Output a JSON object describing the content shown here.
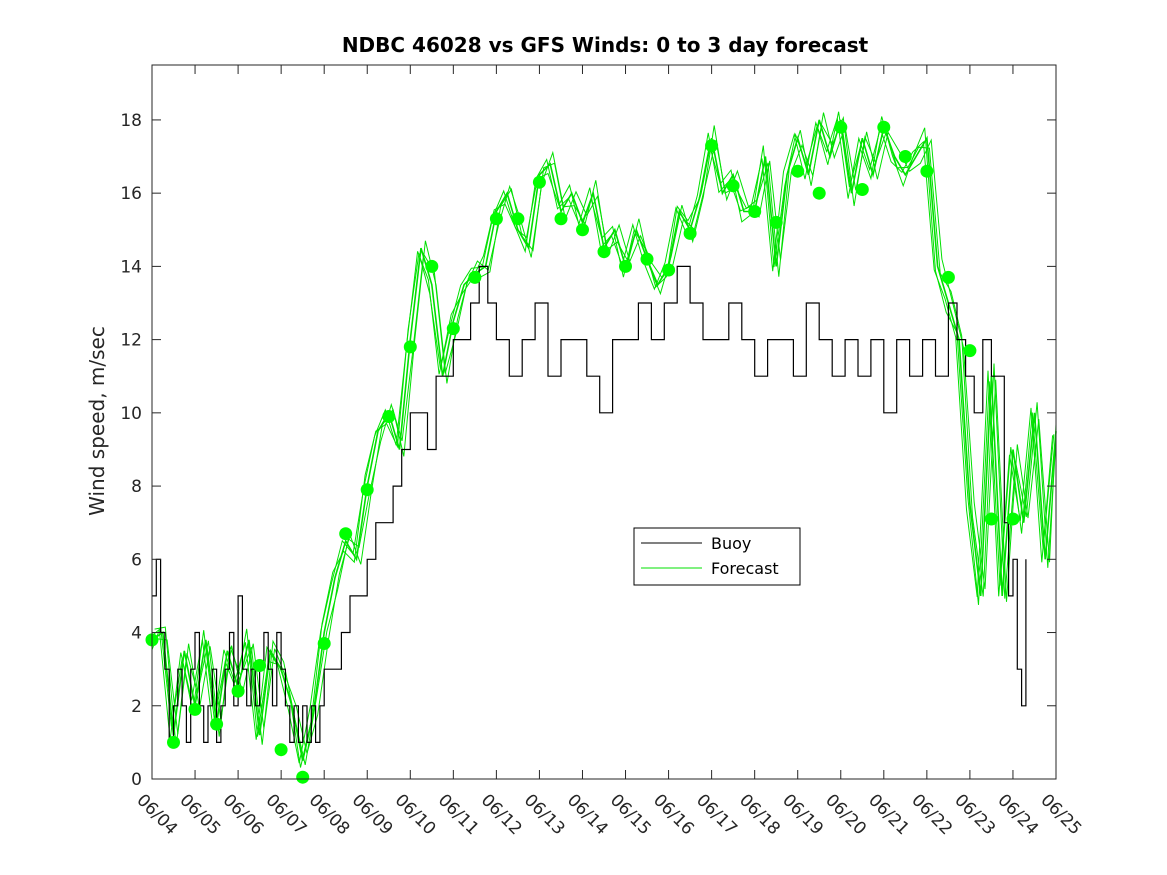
{
  "chart_data": {
    "type": "line",
    "title": "NDBC 46028 vs GFS Winds: 0 to 3 day forecast",
    "xlabel": "",
    "ylabel": "Wind speed, m/sec",
    "xlim": [
      "06/04",
      "06/25"
    ],
    "ylim": [
      0,
      19.5
    ],
    "x_tick_labels": [
      "06/04",
      "06/05",
      "06/06",
      "06/07",
      "06/08",
      "06/09",
      "06/10",
      "06/11",
      "06/12",
      "06/13",
      "06/14",
      "06/15",
      "06/16",
      "06/17",
      "06/18",
      "06/19",
      "06/20",
      "06/21",
      "06/22",
      "06/23",
      "06/24",
      "06/25"
    ],
    "y_ticks": [
      0,
      2,
      4,
      6,
      8,
      10,
      12,
      14,
      16,
      18
    ],
    "grid": false,
    "legend_position": "center-right",
    "series": [
      {
        "name": "Buoy",
        "color": "#000000",
        "x_days": [
          0,
          0.1,
          0.2,
          0.3,
          0.4,
          0.5,
          0.6,
          0.7,
          0.8,
          0.9,
          1.0,
          1.1,
          1.2,
          1.3,
          1.4,
          1.5,
          1.6,
          1.7,
          1.8,
          1.9,
          2.0,
          2.1,
          2.2,
          2.3,
          2.4,
          2.5,
          2.6,
          2.7,
          2.8,
          2.9,
          3.0,
          3.1,
          3.2,
          3.3,
          3.4,
          3.5,
          3.6,
          3.7,
          3.8,
          3.9,
          4.0,
          4.2,
          4.4,
          4.6,
          4.8,
          5.0,
          5.2,
          5.4,
          5.6,
          5.8,
          6.0,
          6.2,
          6.4,
          6.6,
          6.8,
          7.0,
          7.2,
          7.4,
          7.6,
          7.8,
          8.0,
          8.3,
          8.6,
          8.9,
          9.2,
          9.5,
          9.8,
          10.1,
          10.4,
          10.7,
          11.0,
          11.3,
          11.6,
          11.9,
          12.2,
          12.5,
          12.8,
          13.1,
          13.4,
          13.7,
          14.0,
          14.3,
          14.6,
          14.9,
          15.2,
          15.5,
          15.8,
          16.1,
          16.4,
          16.7,
          17.0,
          17.3,
          17.6,
          17.9,
          18.2,
          18.5,
          18.7,
          18.9,
          19.1,
          19.3,
          19.5,
          19.7,
          19.8,
          19.9,
          20.0,
          20.1,
          20.2,
          20.3
        ],
        "values": [
          5,
          6,
          4,
          3,
          1,
          2,
          3,
          2,
          1,
          3,
          4,
          2,
          1,
          2,
          3,
          1,
          2,
          3,
          4,
          2,
          5,
          3,
          2,
          3,
          2,
          3,
          4,
          3,
          2,
          4,
          3,
          2,
          1,
          2,
          1,
          2,
          1,
          2,
          1,
          2,
          3,
          3,
          4,
          5,
          5,
          6,
          7,
          7,
          8,
          9,
          10,
          10,
          9,
          11,
          11,
          12,
          12,
          13,
          14,
          13,
          12,
          11,
          12,
          13,
          11,
          12,
          12,
          11,
          10,
          12,
          12,
          13,
          12,
          13,
          14,
          13,
          12,
          12,
          13,
          12,
          11,
          12,
          12,
          11,
          13,
          12,
          11,
          12,
          11,
          12,
          10,
          12,
          11,
          12,
          11,
          13,
          12,
          11,
          10,
          12,
          11,
          11,
          7,
          5,
          6,
          3,
          2,
          6
        ]
      },
      {
        "name": "Forecast",
        "color": "#00e000",
        "x_days": [
          0,
          0.25,
          0.5,
          0.75,
          1.0,
          1.25,
          1.5,
          1.75,
          2.0,
          2.25,
          2.5,
          2.75,
          3.0,
          3.25,
          3.5,
          3.75,
          4.0,
          4.25,
          4.5,
          4.75,
          5.0,
          5.25,
          5.5,
          5.75,
          6.0,
          6.25,
          6.5,
          6.75,
          7.0,
          7.25,
          7.5,
          7.75,
          8.0,
          8.25,
          8.5,
          8.75,
          9.0,
          9.25,
          9.5,
          9.75,
          10.0,
          10.25,
          10.5,
          10.75,
          11.0,
          11.25,
          11.5,
          11.75,
          12.0,
          12.25,
          12.5,
          12.75,
          13.0,
          13.25,
          13.5,
          13.75,
          14.0,
          14.25,
          14.5,
          14.75,
          15.0,
          15.25,
          15.5,
          15.75,
          16.0,
          16.25,
          16.5,
          16.75,
          17.0,
          17.25,
          17.5,
          17.75,
          18.0,
          18.25,
          18.5,
          18.75,
          19.0,
          19.25,
          19.5,
          19.75,
          20.0,
          20.25,
          20.5,
          20.75,
          21.0
        ],
        "values": [
          3.8,
          4.0,
          1.2,
          3.5,
          2.0,
          3.8,
          1.5,
          3.5,
          2.5,
          3.8,
          1.2,
          3.5,
          3.0,
          2.0,
          0.5,
          1.8,
          4.0,
          5.5,
          6.5,
          6.0,
          8.0,
          9.5,
          10.0,
          9.0,
          12.0,
          14.5,
          13.5,
          11.0,
          12.5,
          13.5,
          13.8,
          14.0,
          15.5,
          16.0,
          15.0,
          14.5,
          16.5,
          16.8,
          15.5,
          16.0,
          15.2,
          16.0,
          14.5,
          15.0,
          14.0,
          15.0,
          14.2,
          13.5,
          14.0,
          15.5,
          15.0,
          16.0,
          17.5,
          16.0,
          16.5,
          15.5,
          15.5,
          17.0,
          14.0,
          16.5,
          17.5,
          16.5,
          18.0,
          17.0,
          18.0,
          16.0,
          17.5,
          16.5,
          17.8,
          17.0,
          16.5,
          17.0,
          17.5,
          14.0,
          13.0,
          12.0,
          7.5,
          5.0,
          11.0,
          5.0,
          9.0,
          7.0,
          10.0,
          6.0,
          9.5
        ]
      },
      {
        "name": "",
        "color": "#00ff00",
        "x_days": [
          0,
          0.5,
          1,
          1.5,
          2,
          2.5,
          3,
          3.5,
          4,
          4.5,
          5,
          5.5,
          6,
          6.5,
          7,
          7.5,
          8,
          8.5,
          9,
          9.5,
          10,
          10.5,
          11,
          11.5,
          12,
          12.5,
          13,
          13.5,
          14,
          14.5,
          15,
          15.5,
          16,
          16.5,
          17,
          17.5,
          18,
          18.5,
          19,
          19.5,
          20
        ],
        "values": [
          3.8,
          1.0,
          1.9,
          1.5,
          2.4,
          3.1,
          0.8,
          0.05,
          3.7,
          6.7,
          7.9,
          9.9,
          11.8,
          14.0,
          12.3,
          13.7,
          15.3,
          15.3,
          16.3,
          15.3,
          15.0,
          14.4,
          14.0,
          14.2,
          13.9,
          14.9,
          17.3,
          16.2,
          15.5,
          15.2,
          16.6,
          16.0,
          17.8,
          16.1,
          17.8,
          17.0,
          16.6,
          13.7,
          11.7,
          7.1,
          7.1
        ]
      }
    ]
  }
}
